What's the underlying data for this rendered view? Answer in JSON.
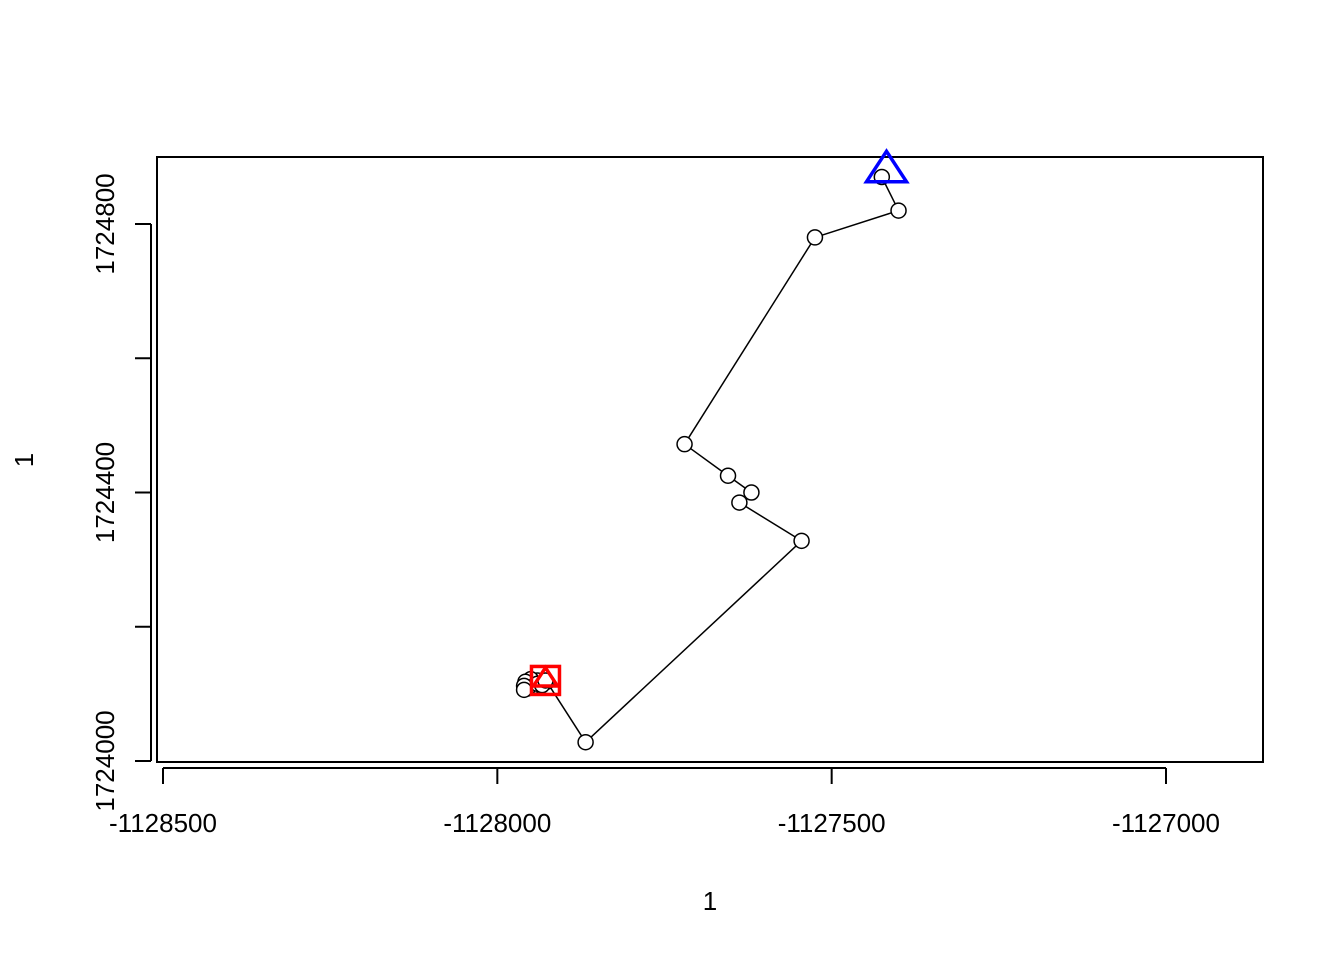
{
  "chart_data": {
    "type": "line",
    "title": "",
    "xlabel": "1",
    "ylabel": "1",
    "xlim": [
      -1128500,
      -1126850
    ],
    "ylim": [
      1724000,
      1724900
    ],
    "x_ticks": [
      -1128500,
      -1128000,
      -1127500,
      -1127000
    ],
    "x_tick_labels": [
      "-1128500",
      "-1128000",
      "-1127500",
      "-1127000"
    ],
    "y_ticks": [
      1724000,
      1724200,
      1724400,
      1724600,
      1724800
    ],
    "y_tick_labels": [
      "1724000",
      "",
      "1724400",
      "",
      "1724800"
    ],
    "grid": false,
    "series": [
      {
        "marker": "open-circle",
        "line": true,
        "color": "#000000",
        "points": [
          {
            "x": -1127425,
            "y": 1724870
          },
          {
            "x": -1127400,
            "y": 1724820
          },
          {
            "x": -1127525,
            "y": 1724780
          },
          {
            "x": -1127720,
            "y": 1724472
          },
          {
            "x": -1127655,
            "y": 1724425
          },
          {
            "x": -1127620,
            "y": 1724400
          },
          {
            "x": -1127638,
            "y": 1724385
          },
          {
            "x": -1127545,
            "y": 1724328
          },
          {
            "x": -1127868,
            "y": 1724028
          },
          {
            "x": -1127926,
            "y": 1724118
          },
          {
            "x": -1127940,
            "y": 1724120
          },
          {
            "x": -1127950,
            "y": 1724122
          },
          {
            "x": -1127958,
            "y": 1724118
          },
          {
            "x": -1127945,
            "y": 1724112
          },
          {
            "x": -1127955,
            "y": 1724108
          },
          {
            "x": -1127940,
            "y": 1724115
          },
          {
            "x": -1127960,
            "y": 1724112
          },
          {
            "x": -1127960,
            "y": 1724106
          },
          {
            "x": -1127933,
            "y": 1724113
          },
          {
            "x": -1127928,
            "y": 1724120
          }
        ]
      }
    ],
    "annotations": [
      {
        "shape": "triangle",
        "color": "#0000ff",
        "x": -1127418,
        "y": 1724880
      },
      {
        "shape": "square",
        "color": "#ff0000",
        "x": -1127928,
        "y": 1724120
      },
      {
        "shape": "triangle",
        "color": "#ff0000",
        "x": -1127928,
        "y": 1724122
      }
    ]
  }
}
